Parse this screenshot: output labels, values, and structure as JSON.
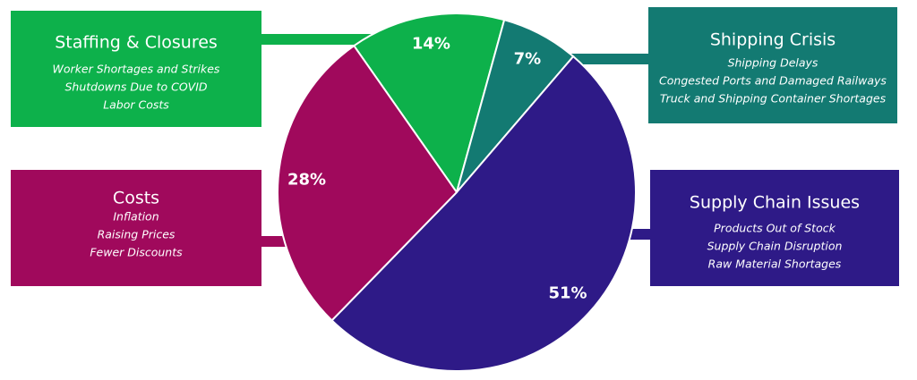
{
  "chart_data": {
    "type": "pie",
    "categories": [
      "Staffing & Closures",
      "Shipping Crisis",
      "Supply Chain Issues",
      "Costs"
    ],
    "values": [
      14,
      7,
      51,
      28
    ],
    "value_labels": [
      "14%",
      "7%",
      "51%",
      "28%"
    ],
    "colors": [
      "#0db14b",
      "#137a72",
      "#2e1a87",
      "#a0095c"
    ],
    "details": [
      [
        "Worker Shortages and Strikes",
        "Shutdowns Due to COVID",
        "Labor Costs"
      ],
      [
        "Shipping Delays",
        "Congested Ports and Damaged Railways",
        "Truck and Shipping Container Shortages"
      ],
      [
        "Products Out of Stock",
        "Supply Chain Disruption",
        "Raw Material Shortages"
      ],
      [
        "Inflation",
        "Raising Prices",
        "Fewer Discounts"
      ]
    ]
  }
}
